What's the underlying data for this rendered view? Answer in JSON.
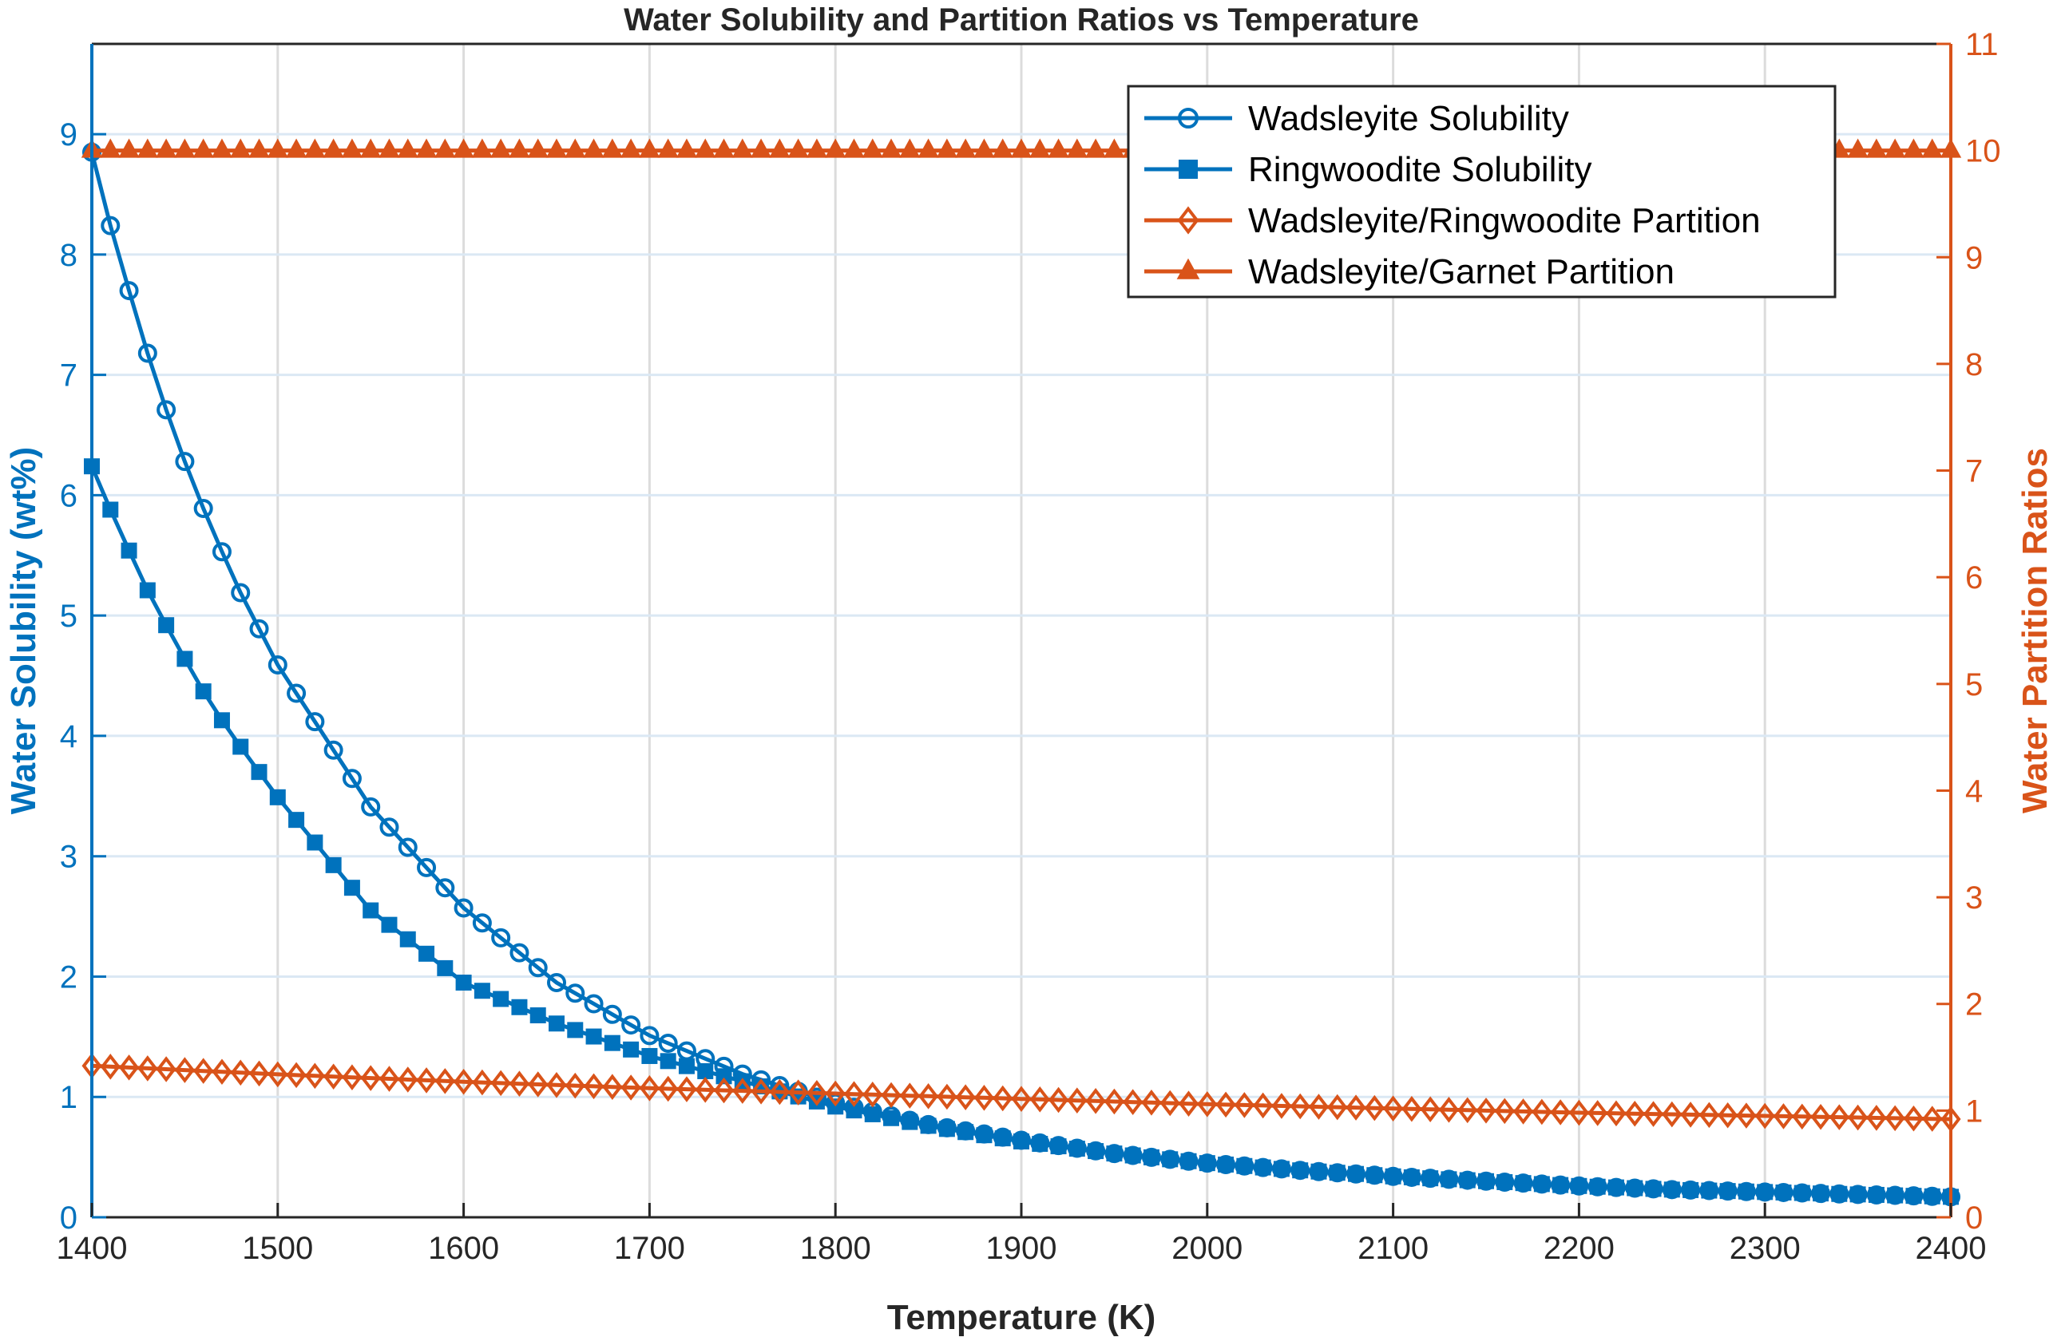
{
  "chart_data": {
    "type": "line",
    "title": "Water Solubility and Partition Ratios vs Temperature",
    "xlabel": "Temperature (K)",
    "ylabel_left": "Water Solubility (wt%)",
    "ylabel_right": "Water Partition Ratios",
    "xlim": [
      1400,
      2400
    ],
    "ylim_left": [
      0,
      9.75
    ],
    "ylim_right": [
      0,
      11
    ],
    "xticks": [
      "1400",
      "1500",
      "1600",
      "1700",
      "1800",
      "1900",
      "2000",
      "2100",
      "2200",
      "2300",
      "2400"
    ],
    "yticks_left": [
      "0",
      "1",
      "2",
      "3",
      "4",
      "5",
      "6",
      "7",
      "8",
      "9"
    ],
    "yticks_right": [
      "0",
      "1",
      "2",
      "3",
      "4",
      "5",
      "6",
      "7",
      "8",
      "9",
      "10",
      "11"
    ],
    "grid": true,
    "legend_position": "top-right",
    "x_sampling": {
      "start": 1400,
      "end": 2400,
      "step": 10
    },
    "series": [
      {
        "name": "Wadsleyite Solubility",
        "axis": "left",
        "marker": "circle",
        "color": "#0072BD",
        "x": [
          1400,
          1410,
          1420,
          1430,
          1440,
          1450,
          1460,
          1470,
          1480,
          1500,
          1550,
          1600,
          1650,
          1700,
          1750,
          1800,
          1850,
          1900,
          1950,
          2000,
          2050,
          2100,
          2150,
          2200,
          2250,
          2300,
          2350,
          2400
        ],
        "values": [
          8.85,
          8.24,
          7.7,
          7.18,
          6.71,
          6.28,
          5.89,
          5.53,
          5.19,
          4.59,
          3.41,
          2.57,
          1.95,
          1.51,
          1.19,
          0.95,
          0.77,
          0.64,
          0.53,
          0.45,
          0.39,
          0.34,
          0.3,
          0.26,
          0.23,
          0.21,
          0.19,
          0.17
        ]
      },
      {
        "name": "Ringwoodite Solubility",
        "axis": "left",
        "marker": "square",
        "color": "#0072BD",
        "x": [
          1400,
          1410,
          1420,
          1430,
          1440,
          1450,
          1460,
          1470,
          1480,
          1500,
          1550,
          1600,
          1650,
          1700,
          1750,
          1800,
          1850,
          1900,
          1950,
          2000,
          2050,
          2100,
          2150,
          2200,
          2250,
          2300,
          2350,
          2400
        ],
        "values": [
          6.24,
          5.88,
          5.54,
          5.21,
          4.92,
          4.64,
          4.37,
          4.13,
          3.91,
          3.49,
          2.55,
          1.95,
          1.61,
          1.34,
          1.13,
          0.92,
          0.76,
          0.63,
          0.53,
          0.45,
          0.39,
          0.34,
          0.3,
          0.26,
          0.23,
          0.21,
          0.19,
          0.17
        ]
      },
      {
        "name": "Wadsleyite/Ringwoodite Partition",
        "axis": "right",
        "marker": "diamond",
        "color": "#D95319",
        "x": [
          1400,
          1500,
          1600,
          1700,
          1800,
          1900,
          2000,
          2100,
          2200,
          2300,
          2400
        ],
        "values": [
          1.42,
          1.34,
          1.27,
          1.21,
          1.16,
          1.11,
          1.06,
          1.02,
          0.98,
          0.95,
          0.92
        ]
      },
      {
        "name": "Wadsleyite/Garnet Partition",
        "axis": "right",
        "marker": "triangle",
        "color": "#D95319",
        "x": [
          1400,
          2400
        ],
        "values": [
          10,
          10
        ]
      }
    ]
  }
}
